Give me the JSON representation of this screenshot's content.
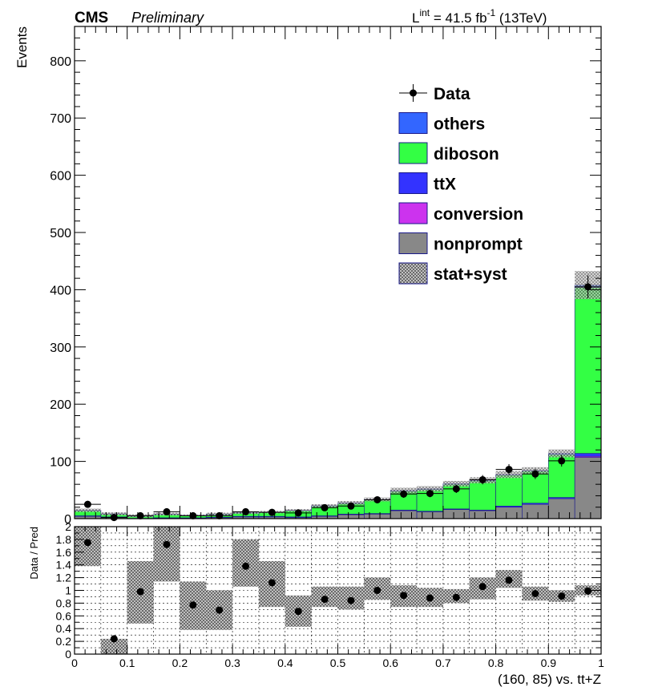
{
  "header": {
    "experiment": "CMS",
    "status": "Preliminary",
    "lumi_prefix": "L",
    "lumi_sup": "int",
    "lumi_value": " = 41.5 fb",
    "lumi_exp": "-1",
    "energy": " (13TeV)"
  },
  "chart_data": [
    {
      "type": "bar",
      "stacked": true,
      "ylabel": "Events",
      "xlim": [
        0,
        1
      ],
      "ylim": [
        0,
        860
      ],
      "yticks": [
        0,
        100,
        200,
        300,
        400,
        500,
        600,
        700,
        800
      ],
      "bin_edges": [
        0,
        0.05,
        0.1,
        0.15,
        0.2,
        0.25,
        0.3,
        0.35,
        0.4,
        0.45,
        0.5,
        0.55,
        0.6,
        0.65,
        0.7,
        0.75,
        0.8,
        0.85,
        0.9,
        0.95,
        1.0
      ],
      "colors": {
        "nonprompt": "#888888",
        "conversion": "#cc33ee",
        "ttX": "#3333ff",
        "diboson": "#33ff44",
        "others": "#3366ff",
        "data": "#000000",
        "band": "#9a9a9a"
      },
      "series": [
        {
          "name": "nonprompt",
          "values": [
            4,
            2,
            0,
            1,
            1,
            2,
            3,
            3,
            2,
            4,
            7,
            8,
            14,
            12,
            16,
            14,
            20,
            25,
            35,
            107
          ]
        },
        {
          "name": "conversion",
          "values": [
            0,
            0,
            0,
            0,
            0,
            0,
            0,
            0,
            0,
            0,
            0,
            0,
            0,
            0,
            0,
            0,
            0,
            0,
            0,
            2
          ]
        },
        {
          "name": "ttX",
          "values": [
            1,
            1,
            0.5,
            0.5,
            0.5,
            0.5,
            1,
            1,
            1,
            1,
            1,
            1,
            1,
            1,
            1,
            1,
            2,
            2,
            2,
            5
          ]
        },
        {
          "name": "diboson",
          "values": [
            9,
            5,
            4,
            6,
            4,
            5,
            6,
            7,
            11,
            17,
            19,
            24,
            33,
            38,
            43,
            51,
            54,
            56,
            75,
            290
          ]
        },
        {
          "name": "others",
          "values": [
            0.5,
            0.5,
            0.5,
            0.5,
            0.5,
            0.5,
            0.5,
            0.5,
            0.5,
            0.5,
            0.5,
            0.5,
            1,
            1,
            1,
            1,
            1,
            1,
            2,
            4
          ]
        },
        {
          "name": "Data",
          "values": [
            25,
            2,
            5,
            12,
            5,
            5,
            12,
            11,
            10,
            19,
            22,
            33,
            43,
            44,
            52,
            68,
            86,
            78,
            101,
            405
          ],
          "errors": [
            5,
            1.4,
            2.2,
            3.5,
            2.2,
            2.2,
            3.5,
            3.3,
            3.2,
            4.4,
            4.7,
            5.7,
            6.6,
            6.6,
            7.2,
            8.2,
            9.3,
            8.8,
            10,
            20
          ]
        }
      ],
      "band_relative": [
        0.2,
        0.3,
        0.5,
        0.3,
        0.2,
        0.3,
        0.2,
        0.18,
        0.15,
        0.12,
        0.12,
        0.1,
        0.1,
        0.09,
        0.08,
        0.08,
        0.08,
        0.07,
        0.06,
        0.06
      ],
      "legend": {
        "placement": "top-right",
        "entries": [
          {
            "label": "Data",
            "key": "data"
          },
          {
            "label": "others",
            "key": "others"
          },
          {
            "label": "diboson",
            "key": "diboson"
          },
          {
            "label": "ttX",
            "key": "ttX"
          },
          {
            "label": "conversion",
            "key": "conversion"
          },
          {
            "label": "nonprompt",
            "key": "nonprompt"
          },
          {
            "label": "stat+syst",
            "key": "band"
          }
        ]
      }
    },
    {
      "type": "scatter",
      "ylabel": "Data / Pred",
      "xlabel": "(160, 85) vs. tt+Z",
      "xlim": [
        0,
        1
      ],
      "ylim": [
        0,
        2
      ],
      "grid": true,
      "xticks": [
        0,
        0.1,
        0.2,
        0.3,
        0.4,
        0.5,
        0.6,
        0.7,
        0.8,
        0.9,
        1
      ],
      "xtick_labels": [
        "0",
        "0.1",
        "0.2",
        "0.3",
        "0.4",
        "0.5",
        "0.6",
        "0.7",
        "0.8",
        "0.9",
        "1"
      ],
      "yticks": [
        0,
        0.2,
        0.4,
        0.6,
        0.8,
        1,
        1.2,
        1.4,
        1.6,
        1.8,
        2
      ],
      "ytick_labels": [
        "0",
        "0.2",
        "0.4",
        "0.6",
        "0.8",
        "1",
        "1.2",
        "1.4",
        "1.6",
        "1.8",
        "2"
      ],
      "ratio": [
        1.75,
        0.24,
        0.98,
        1.72,
        0.77,
        0.69,
        1.38,
        1.12,
        0.67,
        0.86,
        0.84,
        1.0,
        0.92,
        0.88,
        0.89,
        1.06,
        1.16,
        0.95,
        0.91,
        0.99
      ],
      "band_low": [
        1.38,
        0.0,
        0.48,
        1.14,
        0.38,
        0.38,
        1.06,
        0.74,
        0.43,
        0.74,
        0.7,
        0.85,
        0.74,
        0.74,
        0.8,
        0.86,
        1.04,
        0.84,
        0.82,
        0.92
      ],
      "band_high": [
        2.0,
        0.24,
        1.46,
        2.0,
        1.14,
        1.0,
        1.8,
        1.46,
        0.92,
        1.06,
        1.06,
        1.2,
        1.08,
        1.04,
        1.02,
        1.2,
        1.32,
        1.06,
        1.0,
        1.08
      ]
    }
  ]
}
